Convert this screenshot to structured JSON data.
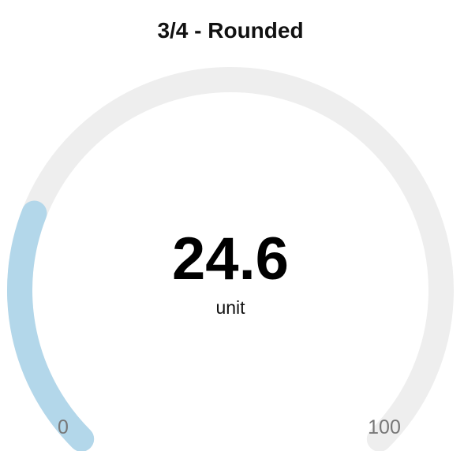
{
  "chart_data": {
    "type": "gauge",
    "title": "3/4 - Rounded",
    "value": 24.6,
    "value_label": "24.6",
    "unit": "unit",
    "min": 0,
    "max": 100,
    "min_label": "0",
    "max_label": "100",
    "arc_extent": "3/4",
    "line_cap": "rounded",
    "colors": {
      "track": "#eeeeee",
      "fill": "#b3d7ea"
    }
  }
}
